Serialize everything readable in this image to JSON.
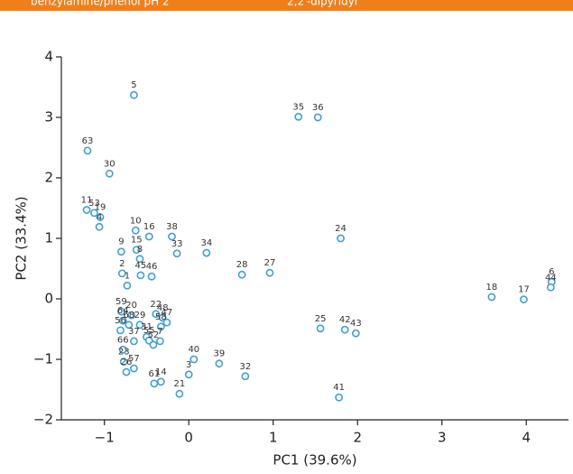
{
  "banner": {
    "left": "benzylamine/phenol pH 2",
    "right": "2,2′-dipyridyl"
  },
  "chart_data": {
    "type": "scatter",
    "xlabel": "PC1 (39.6%)",
    "ylabel": "PC2 (33.4%)",
    "color": "#3fa0d0",
    "xlim": [
      -1.51,
      4.5
    ],
    "ylim": [
      -2,
      4
    ],
    "xticks": [
      {
        "value": -1,
        "label": "−1"
      },
      0,
      1,
      2,
      3,
      4
    ],
    "yticks": [
      {
        "value": -2,
        "label": "−2"
      },
      {
        "value": -1,
        "label": "−1"
      },
      0,
      1,
      2,
      3,
      4
    ],
    "labels": [
      "5",
      "35",
      "36",
      "63",
      "30",
      "11",
      "53",
      "19",
      "4",
      "10",
      "16",
      "38",
      "33",
      "34",
      "24",
      "9",
      "15",
      "8",
      "45",
      "46",
      "2",
      "1",
      "28",
      "27",
      "18",
      "17",
      "6",
      "44",
      "25",
      "42",
      "43",
      "41",
      "59",
      "20",
      "64",
      "68",
      "29",
      "22",
      "48",
      "47",
      "58",
      "56",
      "37",
      "31",
      "55",
      "52",
      "66",
      "7",
      "40",
      "39",
      "32",
      "23",
      "57",
      "26",
      "61",
      "14",
      "3",
      "21"
    ],
    "x": [
      -0.65,
      1.3,
      1.53,
      -1.2,
      -0.94,
      -1.21,
      -1.12,
      -1.05,
      -1.06,
      -0.63,
      -0.47,
      -0.2,
      -0.14,
      0.21,
      1.8,
      -0.8,
      -0.62,
      -0.58,
      -0.57,
      -0.44,
      -0.79,
      -0.73,
      0.63,
      0.96,
      3.59,
      3.97,
      4.3,
      4.29,
      1.56,
      1.85,
      1.98,
      1.78,
      -0.8,
      -0.68,
      -0.78,
      -0.71,
      -0.58,
      -0.39,
      -0.31,
      -0.26,
      -0.33,
      -0.81,
      -0.65,
      -0.5,
      -0.47,
      -0.42,
      -0.78,
      -0.34,
      0.06,
      0.36,
      0.67,
      -0.77,
      -0.65,
      -0.74,
      -0.41,
      -0.33,
      0.0,
      -0.11
    ],
    "y": [
      3.37,
      3.01,
      3.0,
      2.45,
      2.07,
      1.47,
      1.42,
      1.35,
      1.19,
      1.13,
      1.03,
      1.03,
      0.75,
      0.76,
      1.0,
      0.78,
      0.81,
      0.66,
      0.39,
      0.37,
      0.42,
      0.22,
      0.4,
      0.43,
      0.03,
      -0.01,
      0.28,
      0.19,
      -0.49,
      -0.51,
      -0.57,
      -1.63,
      -0.21,
      -0.27,
      -0.36,
      -0.43,
      -0.43,
      -0.25,
      -0.31,
      -0.39,
      -0.46,
      -0.52,
      -0.7,
      -0.63,
      -0.69,
      -0.76,
      -0.84,
      -0.7,
      -1.0,
      -1.07,
      -1.28,
      -1.04,
      -1.15,
      -1.21,
      -1.4,
      -1.37,
      -1.25,
      -1.57
    ]
  }
}
